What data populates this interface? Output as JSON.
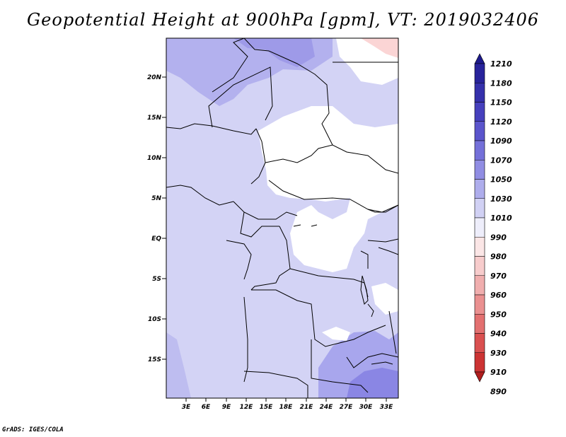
{
  "title": "Geopotential Height at 900hPa [gpm], VT: 2019032406",
  "credit": "GrADS: IGES/COLA",
  "map": {
    "lat_labels": [
      "20N",
      "15N",
      "10N",
      "5N",
      "EQ",
      "5S",
      "10S",
      "15S"
    ],
    "lon_labels": [
      "3E",
      "6E",
      "9E",
      "12E",
      "15E",
      "18E",
      "21E",
      "24E",
      "27E",
      "30E",
      "33E"
    ]
  },
  "colorbar": {
    "labels": [
      "1210",
      "1180",
      "1150",
      "1120",
      "1090",
      "1070",
      "1050",
      "1030",
      "1010",
      "990",
      "980",
      "970",
      "960",
      "950",
      "940",
      "930",
      "910",
      "890"
    ],
    "colors": [
      "#1e1a8c",
      "#28239b",
      "#3530ab",
      "#4640bd",
      "#5b55cc",
      "#7470d9",
      "#908de3",
      "#aeadec",
      "#d1d1f4",
      "#eeeefb",
      "#fbe6e6",
      "#f7cccc",
      "#f0aeae",
      "#ea9090",
      "#e37070",
      "#da5050",
      "#cc3333",
      "#b01e1e"
    ]
  },
  "colors": {
    "field_base": "#d3d3f5",
    "field_high": "#b3b1ee",
    "field_higher": "#8e8ae6",
    "field_low": "#ffffff",
    "field_pink": "#fbd5d5"
  }
}
